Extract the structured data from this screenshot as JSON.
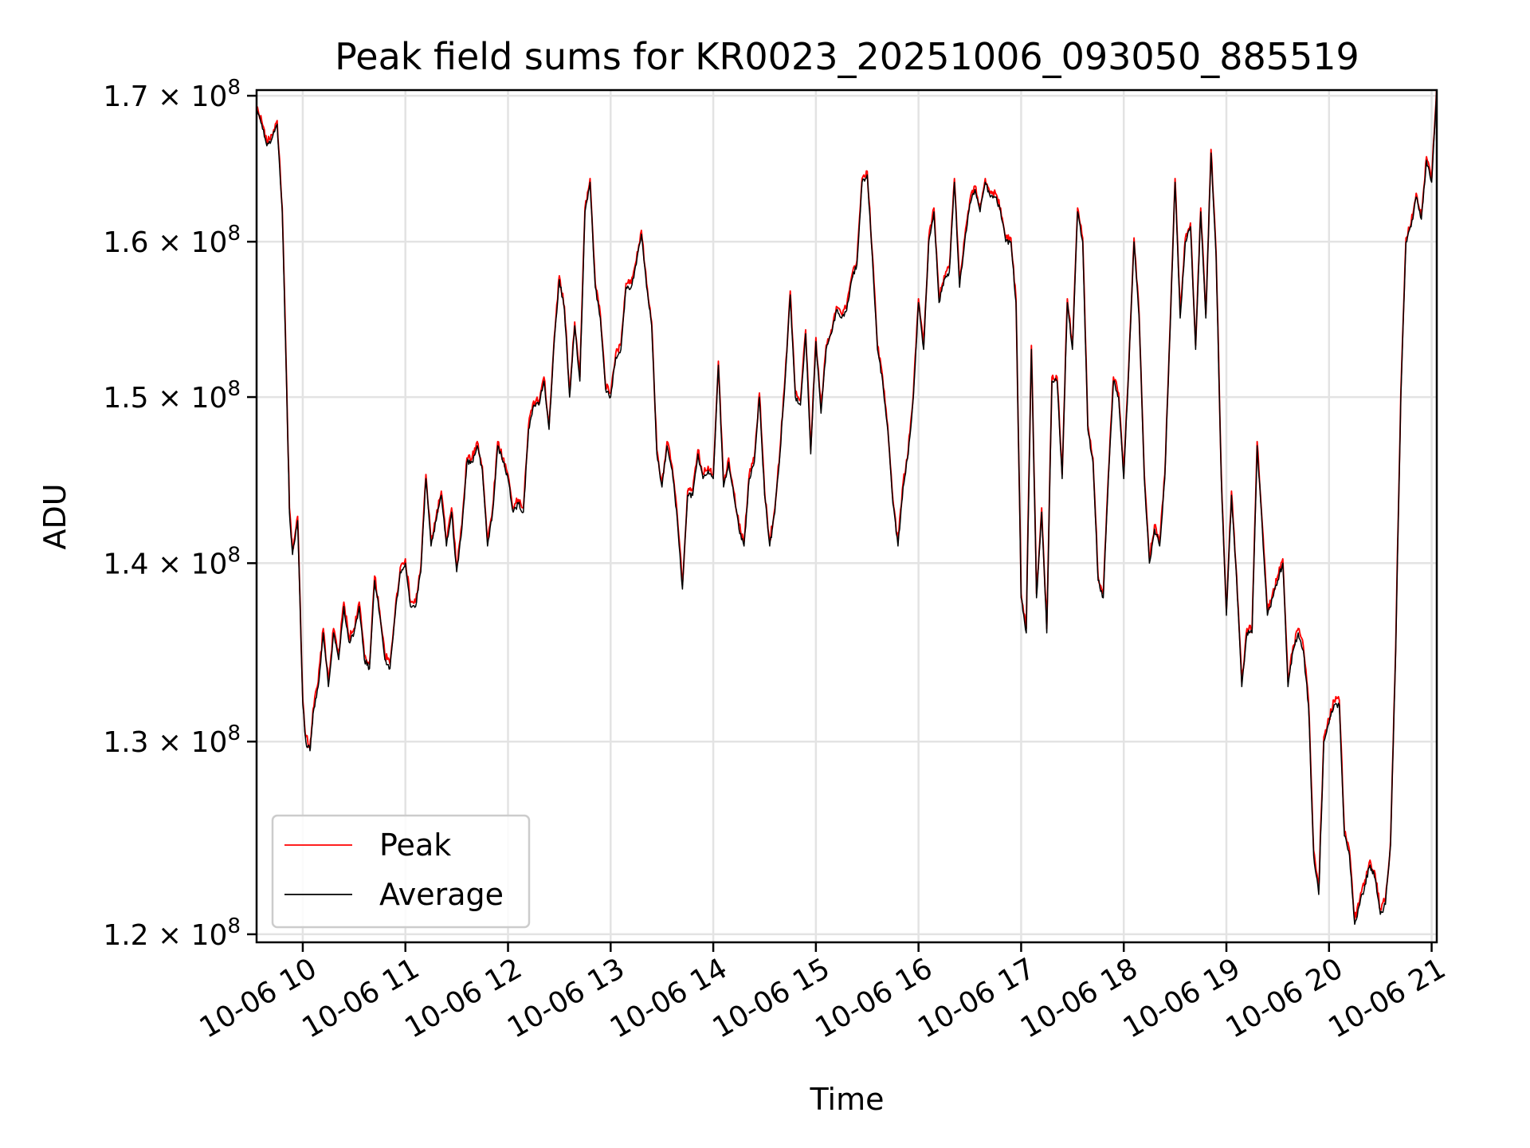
{
  "chart_data": {
    "type": "line",
    "title": "Peak field sums for KR0023_20251006_093050_885519",
    "xlabel": "Time",
    "ylabel": "ADU",
    "yscale": "log",
    "xlim": [
      9.55,
      21.05
    ],
    "ylim": [
      119600000.0,
      170400000.0
    ],
    "grid": true,
    "legend_location": "lower-left",
    "x_ticks": [
      10,
      11,
      12,
      13,
      14,
      15,
      16,
      17,
      18,
      19,
      20,
      21
    ],
    "x_tick_labels": [
      "10-06 10",
      "10-06 11",
      "10-06 12",
      "10-06 13",
      "10-06 14",
      "10-06 15",
      "10-06 16",
      "10-06 17",
      "10-06 18",
      "10-06 19",
      "10-06 20",
      "10-06 21"
    ],
    "y_ticks": [
      120000000.0,
      130000000.0,
      140000000.0,
      150000000.0,
      160000000.0,
      170000000.0
    ],
    "y_tick_mantissas": [
      "1.2",
      "1.3",
      "1.4",
      "1.5",
      "1.6",
      "1.7"
    ],
    "y_tick_base": "× 10",
    "y_tick_exponent": "8",
    "x_unit": "hour of 2025-10-06",
    "y_unit": "ADU (×1e8)",
    "anchors": [
      [
        9.55,
        1.69
      ],
      [
        9.6,
        1.68
      ],
      [
        9.65,
        1.665
      ],
      [
        9.7,
        1.67
      ],
      [
        9.75,
        1.68
      ],
      [
        9.8,
        1.62
      ],
      [
        9.83,
        1.54
      ],
      [
        9.87,
        1.43
      ],
      [
        9.9,
        1.405
      ],
      [
        9.95,
        1.425
      ],
      [
        10.0,
        1.32
      ],
      [
        10.03,
        1.3
      ],
      [
        10.07,
        1.295
      ],
      [
        10.1,
        1.315
      ],
      [
        10.15,
        1.33
      ],
      [
        10.2,
        1.36
      ],
      [
        10.25,
        1.33
      ],
      [
        10.3,
        1.36
      ],
      [
        10.35,
        1.345
      ],
      [
        10.4,
        1.375
      ],
      [
        10.45,
        1.355
      ],
      [
        10.5,
        1.36
      ],
      [
        10.55,
        1.375
      ],
      [
        10.6,
        1.345
      ],
      [
        10.65,
        1.34
      ],
      [
        10.7,
        1.39
      ],
      [
        10.75,
        1.37
      ],
      [
        10.8,
        1.345
      ],
      [
        10.85,
        1.34
      ],
      [
        10.9,
        1.37
      ],
      [
        10.95,
        1.395
      ],
      [
        11.0,
        1.4
      ],
      [
        11.05,
        1.375
      ],
      [
        11.1,
        1.375
      ],
      [
        11.15,
        1.395
      ],
      [
        11.2,
        1.45
      ],
      [
        11.25,
        1.41
      ],
      [
        11.3,
        1.425
      ],
      [
        11.35,
        1.44
      ],
      [
        11.4,
        1.41
      ],
      [
        11.45,
        1.43
      ],
      [
        11.5,
        1.395
      ],
      [
        11.55,
        1.42
      ],
      [
        11.6,
        1.46
      ],
      [
        11.65,
        1.46
      ],
      [
        11.7,
        1.47
      ],
      [
        11.75,
        1.455
      ],
      [
        11.8,
        1.41
      ],
      [
        11.85,
        1.43
      ],
      [
        11.9,
        1.47
      ],
      [
        11.95,
        1.46
      ],
      [
        12.0,
        1.45
      ],
      [
        12.05,
        1.43
      ],
      [
        12.1,
        1.435
      ],
      [
        12.15,
        1.43
      ],
      [
        12.2,
        1.48
      ],
      [
        12.25,
        1.495
      ],
      [
        12.3,
        1.495
      ],
      [
        12.35,
        1.51
      ],
      [
        12.4,
        1.48
      ],
      [
        12.45,
        1.535
      ],
      [
        12.5,
        1.575
      ],
      [
        12.55,
        1.555
      ],
      [
        12.6,
        1.5
      ],
      [
        12.65,
        1.545
      ],
      [
        12.7,
        1.51
      ],
      [
        12.75,
        1.62
      ],
      [
        12.8,
        1.64
      ],
      [
        12.85,
        1.57
      ],
      [
        12.9,
        1.55
      ],
      [
        12.95,
        1.505
      ],
      [
        13.0,
        1.5
      ],
      [
        13.05,
        1.525
      ],
      [
        13.1,
        1.53
      ],
      [
        13.15,
        1.57
      ],
      [
        13.2,
        1.57
      ],
      [
        13.25,
        1.585
      ],
      [
        13.3,
        1.605
      ],
      [
        13.35,
        1.57
      ],
      [
        13.4,
        1.545
      ],
      [
        13.45,
        1.465
      ],
      [
        13.5,
        1.445
      ],
      [
        13.55,
        1.47
      ],
      [
        13.6,
        1.455
      ],
      [
        13.65,
        1.425
      ],
      [
        13.7,
        1.385
      ],
      [
        13.75,
        1.44
      ],
      [
        13.8,
        1.44
      ],
      [
        13.85,
        1.465
      ],
      [
        13.9,
        1.45
      ],
      [
        13.95,
        1.455
      ],
      [
        14.0,
        1.45
      ],
      [
        14.05,
        1.52
      ],
      [
        14.1,
        1.445
      ],
      [
        14.15,
        1.46
      ],
      [
        14.2,
        1.44
      ],
      [
        14.25,
        1.42
      ],
      [
        14.3,
        1.41
      ],
      [
        14.35,
        1.45
      ],
      [
        14.4,
        1.46
      ],
      [
        14.45,
        1.5
      ],
      [
        14.5,
        1.44
      ],
      [
        14.55,
        1.41
      ],
      [
        14.6,
        1.43
      ],
      [
        14.65,
        1.465
      ],
      [
        14.7,
        1.51
      ],
      [
        14.75,
        1.565
      ],
      [
        14.8,
        1.5
      ],
      [
        14.85,
        1.495
      ],
      [
        14.9,
        1.54
      ],
      [
        14.95,
        1.465
      ],
      [
        15.0,
        1.535
      ],
      [
        15.05,
        1.49
      ],
      [
        15.1,
        1.53
      ],
      [
        15.15,
        1.54
      ],
      [
        15.2,
        1.555
      ],
      [
        15.25,
        1.55
      ],
      [
        15.3,
        1.555
      ],
      [
        15.35,
        1.575
      ],
      [
        15.4,
        1.585
      ],
      [
        15.45,
        1.64
      ],
      [
        15.5,
        1.645
      ],
      [
        15.55,
        1.59
      ],
      [
        15.6,
        1.53
      ],
      [
        15.65,
        1.51
      ],
      [
        15.7,
        1.48
      ],
      [
        15.75,
        1.435
      ],
      [
        15.8,
        1.41
      ],
      [
        15.85,
        1.445
      ],
      [
        15.9,
        1.465
      ],
      [
        15.95,
        1.5
      ],
      [
        16.0,
        1.56
      ],
      [
        16.05,
        1.53
      ],
      [
        16.1,
        1.6
      ],
      [
        16.15,
        1.62
      ],
      [
        16.2,
        1.56
      ],
      [
        16.25,
        1.575
      ],
      [
        16.3,
        1.58
      ],
      [
        16.35,
        1.64
      ],
      [
        16.4,
        1.57
      ],
      [
        16.45,
        1.6
      ],
      [
        16.5,
        1.625
      ],
      [
        16.55,
        1.635
      ],
      [
        16.6,
        1.62
      ],
      [
        16.65,
        1.64
      ],
      [
        16.7,
        1.63
      ],
      [
        16.75,
        1.63
      ],
      [
        16.8,
        1.62
      ],
      [
        16.85,
        1.6
      ],
      [
        16.9,
        1.6
      ],
      [
        16.95,
        1.56
      ],
      [
        17.0,
        1.38
      ],
      [
        17.05,
        1.36
      ],
      [
        17.1,
        1.53
      ],
      [
        17.15,
        1.38
      ],
      [
        17.2,
        1.43
      ],
      [
        17.25,
        1.36
      ],
      [
        17.3,
        1.51
      ],
      [
        17.35,
        1.51
      ],
      [
        17.4,
        1.45
      ],
      [
        17.45,
        1.56
      ],
      [
        17.5,
        1.53
      ],
      [
        17.55,
        1.62
      ],
      [
        17.6,
        1.6
      ],
      [
        17.65,
        1.48
      ],
      [
        17.7,
        1.46
      ],
      [
        17.75,
        1.39
      ],
      [
        17.8,
        1.38
      ],
      [
        17.85,
        1.45
      ],
      [
        17.9,
        1.51
      ],
      [
        17.95,
        1.5
      ],
      [
        18.0,
        1.45
      ],
      [
        18.05,
        1.52
      ],
      [
        18.1,
        1.6
      ],
      [
        18.15,
        1.55
      ],
      [
        18.2,
        1.45
      ],
      [
        18.25,
        1.4
      ],
      [
        18.3,
        1.42
      ],
      [
        18.35,
        1.41
      ],
      [
        18.4,
        1.45
      ],
      [
        18.45,
        1.54
      ],
      [
        18.5,
        1.64
      ],
      [
        18.55,
        1.55
      ],
      [
        18.6,
        1.6
      ],
      [
        18.65,
        1.61
      ],
      [
        18.7,
        1.53
      ],
      [
        18.75,
        1.62
      ],
      [
        18.8,
        1.55
      ],
      [
        18.85,
        1.66
      ],
      [
        18.9,
        1.59
      ],
      [
        18.95,
        1.45
      ],
      [
        19.0,
        1.37
      ],
      [
        19.05,
        1.44
      ],
      [
        19.1,
        1.39
      ],
      [
        19.15,
        1.33
      ],
      [
        19.2,
        1.36
      ],
      [
        19.25,
        1.36
      ],
      [
        19.3,
        1.47
      ],
      [
        19.35,
        1.42
      ],
      [
        19.4,
        1.37
      ],
      [
        19.45,
        1.38
      ],
      [
        19.5,
        1.39
      ],
      [
        19.55,
        1.4
      ],
      [
        19.6,
        1.33
      ],
      [
        19.65,
        1.35
      ],
      [
        19.7,
        1.36
      ],
      [
        19.75,
        1.35
      ],
      [
        19.8,
        1.32
      ],
      [
        19.85,
        1.24
      ],
      [
        19.9,
        1.22
      ],
      [
        19.95,
        1.3
      ],
      [
        20.0,
        1.31
      ],
      [
        20.05,
        1.32
      ],
      [
        20.1,
        1.32
      ],
      [
        20.15,
        1.25
      ],
      [
        20.2,
        1.24
      ],
      [
        20.25,
        1.205
      ],
      [
        20.3,
        1.215
      ],
      [
        20.35,
        1.225
      ],
      [
        20.4,
        1.235
      ],
      [
        20.45,
        1.228
      ],
      [
        20.5,
        1.21
      ],
      [
        20.55,
        1.215
      ],
      [
        20.6,
        1.245
      ],
      [
        20.65,
        1.35
      ],
      [
        20.7,
        1.5
      ],
      [
        20.75,
        1.6
      ],
      [
        20.8,
        1.61
      ],
      [
        20.85,
        1.63
      ],
      [
        20.9,
        1.615
      ],
      [
        20.95,
        1.655
      ],
      [
        21.0,
        1.64
      ],
      [
        21.05,
        1.705
      ]
    ],
    "series": [
      {
        "name": "Peak",
        "color": "#ff0000",
        "peak_offset": 0.0025,
        "noise_amplitude": 0.005
      },
      {
        "name": "Average",
        "color": "#000000",
        "peak_offset": 0.0,
        "noise_amplitude": 0.0035
      }
    ]
  }
}
